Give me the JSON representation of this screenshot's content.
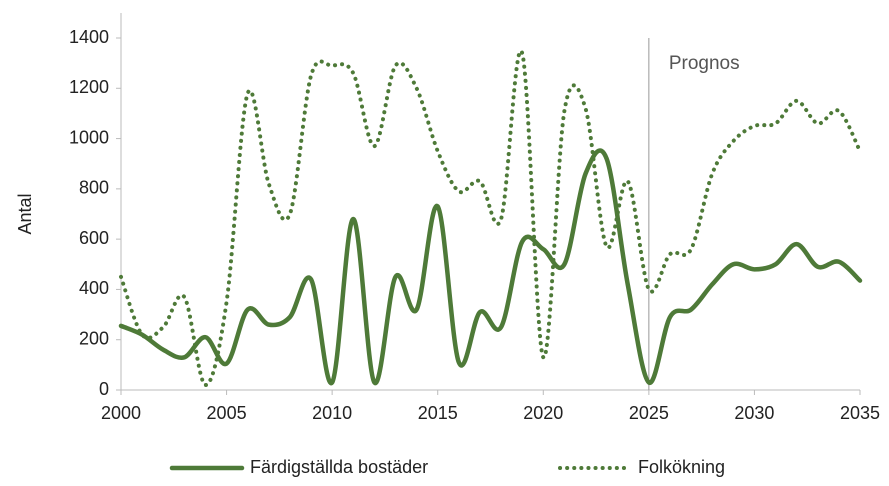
{
  "chart_data": {
    "type": "line",
    "x": [
      2000,
      2001,
      2002,
      2003,
      2004,
      2005,
      2006,
      2007,
      2008,
      2009,
      2010,
      2011,
      2012,
      2013,
      2014,
      2015,
      2016,
      2017,
      2018,
      2019,
      2020,
      2021,
      2022,
      2023,
      2024,
      2025,
      2026,
      2027,
      2028,
      2029,
      2030,
      2031,
      2032,
      2033,
      2034,
      2035
    ],
    "series": [
      {
        "name": "Färdigställda bostäder",
        "color": "#4e7a38",
        "style": "solid",
        "values": [
          255,
          220,
          160,
          130,
          210,
          105,
          320,
          260,
          290,
          440,
          30,
          680,
          30,
          450,
          320,
          730,
          110,
          310,
          250,
          590,
          560,
          500,
          860,
          920,
          420,
          30,
          290,
          320,
          420,
          500,
          480,
          500,
          580,
          490,
          510,
          435
        ]
      },
      {
        "name": "Folkökning",
        "color": "#4e7a38",
        "style": "dotted",
        "values": [
          450,
          220,
          250,
          370,
          20,
          350,
          1180,
          820,
          700,
          1250,
          1290,
          1260,
          970,
          1290,
          1200,
          950,
          790,
          830,
          680,
          1340,
          130,
          1110,
          1120,
          570,
          830,
          400,
          540,
          560,
          860,
          990,
          1050,
          1060,
          1150,
          1060,
          1110,
          950
        ]
      }
    ],
    "ylabel": "Antal",
    "xlim": [
      2000,
      2035
    ],
    "xticks": [
      2000,
      2005,
      2010,
      2015,
      2020,
      2025,
      2030,
      2035
    ],
    "ylim": [
      0,
      1400
    ],
    "yticks": [
      0,
      200,
      400,
      600,
      800,
      1000,
      1200,
      1400
    ],
    "annotations": [
      {
        "text": "Prognos",
        "x": 2025
      }
    ],
    "legend": "bottom",
    "grid": false
  }
}
